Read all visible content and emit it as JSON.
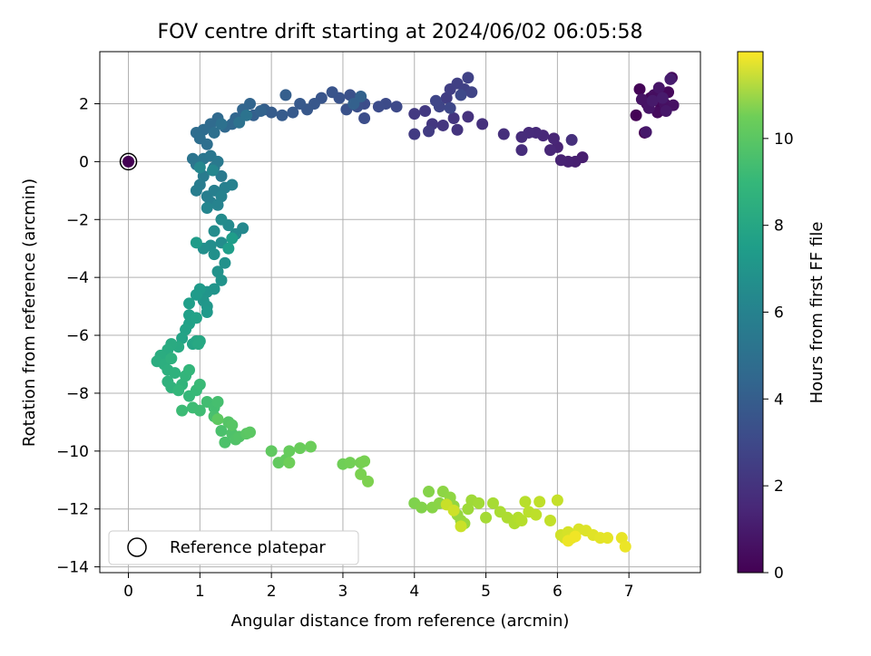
{
  "chart_data": {
    "type": "scatter",
    "title": "FOV centre drift starting at 2024/06/02 06:05:58",
    "xlabel": "Angular distance from reference (arcmin)",
    "ylabel": "Rotation from reference (arcmin)",
    "xlim": [
      -0.4,
      8.0
    ],
    "ylim": [
      -14.2,
      3.8
    ],
    "xticks": [
      "0",
      "1",
      "2",
      "3",
      "4",
      "5",
      "6",
      "7"
    ],
    "yticks": [
      "2",
      "0",
      "−2",
      "−4",
      "−6",
      "−8",
      "−10",
      "−12",
      "−14"
    ],
    "grid": true,
    "legend": {
      "position": "lower-left",
      "entries": [
        "Reference platepar"
      ]
    },
    "colorbar": {
      "label": "Hours from first FF file",
      "range": [
        0,
        12
      ],
      "ticks": [
        "0",
        "2",
        "4",
        "6",
        "8",
        "10"
      ],
      "colormap": "viridis"
    },
    "reference_point": {
      "x": 0,
      "y": 0
    },
    "series": [
      {
        "points": [
          [
            7.22,
            1.0
          ],
          [
            7.1,
            1.6
          ],
          [
            7.15,
            2.5
          ],
          [
            7.3,
            2.2
          ],
          [
            7.45,
            1.9
          ],
          [
            7.55,
            2.4
          ],
          [
            7.6,
            2.9
          ],
          [
            7.4,
            1.7
          ],
          [
            7.25,
            2.0
          ],
          [
            7.35,
            2.3
          ],
          [
            7.5,
            2.0
          ],
          [
            7.62,
            1.95
          ],
          [
            7.18,
            2.15
          ],
          [
            7.28,
            1.85
          ],
          [
            7.42,
            2.55
          ],
          [
            7.52,
            1.75
          ],
          [
            7.24,
            1.02
          ],
          [
            7.33,
            2.1
          ],
          [
            7.47,
            2.2
          ],
          [
            7.58,
            2.85
          ],
          [
            6.35,
            0.15
          ],
          [
            6.25,
            0.0
          ],
          [
            6.15,
            0.0
          ],
          [
            6.05,
            0.05
          ],
          [
            6.0,
            0.5
          ],
          [
            5.95,
            0.8
          ],
          [
            5.9,
            0.4
          ],
          [
            5.8,
            0.9
          ],
          [
            5.7,
            1.0
          ],
          [
            5.6,
            1.0
          ],
          [
            5.5,
            0.85
          ],
          [
            5.5,
            0.4
          ],
          [
            5.25,
            0.95
          ],
          [
            6.2,
            0.75
          ],
          [
            4.95,
            1.3
          ],
          [
            4.75,
            1.55
          ],
          [
            4.6,
            1.1
          ],
          [
            4.55,
            1.5
          ],
          [
            4.4,
            1.25
          ],
          [
            4.25,
            1.3
          ],
          [
            4.15,
            1.75
          ],
          [
            4.0,
            1.65
          ],
          [
            4.0,
            0.95
          ],
          [
            4.2,
            1.05
          ],
          [
            4.45,
            2.2
          ],
          [
            4.5,
            2.5
          ],
          [
            4.6,
            2.7
          ],
          [
            4.7,
            2.5
          ],
          [
            4.75,
            2.9
          ],
          [
            4.8,
            2.4
          ],
          [
            4.35,
            1.9
          ],
          [
            4.3,
            2.1
          ],
          [
            4.5,
            1.85
          ],
          [
            4.65,
            2.3
          ],
          [
            3.75,
            1.9
          ],
          [
            3.6,
            2.0
          ],
          [
            3.5,
            1.9
          ],
          [
            3.3,
            2.0
          ],
          [
            3.3,
            1.5
          ],
          [
            3.2,
            1.9
          ],
          [
            3.1,
            2.3
          ],
          [
            3.05,
            1.8
          ],
          [
            2.95,
            2.2
          ],
          [
            2.85,
            2.4
          ],
          [
            2.7,
            2.2
          ],
          [
            2.6,
            2.0
          ],
          [
            2.5,
            1.8
          ],
          [
            2.4,
            2.0
          ],
          [
            2.3,
            1.7
          ],
          [
            2.15,
            1.6
          ],
          [
            2.0,
            1.7
          ],
          [
            1.9,
            1.8
          ],
          [
            2.2,
            2.3
          ],
          [
            1.75,
            1.6
          ],
          [
            3.15,
            2.0
          ],
          [
            3.25,
            2.25
          ],
          [
            1.85,
            1.75
          ],
          [
            1.7,
            2.0
          ],
          [
            1.6,
            1.8
          ],
          [
            1.5,
            1.5
          ],
          [
            1.45,
            1.3
          ],
          [
            1.35,
            1.2
          ],
          [
            1.25,
            1.5
          ],
          [
            1.15,
            1.3
          ],
          [
            1.05,
            1.1
          ],
          [
            0.95,
            1.0
          ],
          [
            1.0,
            0.8
          ],
          [
            1.1,
            0.6
          ],
          [
            1.2,
            1.0
          ],
          [
            1.3,
            1.3
          ],
          [
            1.55,
            1.35
          ],
          [
            1.65,
            1.6
          ],
          [
            0.9,
            0.1
          ],
          [
            0.95,
            -0.1
          ],
          [
            1.05,
            0.1
          ],
          [
            1.15,
            0.2
          ],
          [
            1.2,
            -0.2
          ],
          [
            1.25,
            0.0
          ],
          [
            1.3,
            -0.5
          ],
          [
            1.05,
            -0.5
          ],
          [
            1.0,
            -0.8
          ],
          [
            0.95,
            -1.0
          ],
          [
            1.1,
            -1.2
          ],
          [
            1.2,
            -1.0
          ],
          [
            1.15,
            -1.4
          ],
          [
            1.35,
            -0.9
          ],
          [
            1.45,
            -0.8
          ],
          [
            1.3,
            -1.2
          ],
          [
            1.25,
            -1.5
          ],
          [
            1.1,
            -1.6
          ],
          [
            1.18,
            -0.3
          ],
          [
            1.0,
            -0.2
          ],
          [
            1.6,
            -2.3
          ],
          [
            1.5,
            -2.5
          ],
          [
            1.4,
            -2.2
          ],
          [
            1.3,
            -2.0
          ],
          [
            1.2,
            -2.4
          ],
          [
            1.3,
            -2.8
          ],
          [
            1.15,
            -2.9
          ],
          [
            1.05,
            -3.0
          ],
          [
            1.2,
            -3.2
          ],
          [
            1.35,
            -3.5
          ],
          [
            1.25,
            -3.8
          ],
          [
            1.3,
            -4.1
          ],
          [
            1.2,
            -4.4
          ],
          [
            1.1,
            -4.5
          ],
          [
            1.05,
            -4.8
          ],
          [
            1.1,
            -5.0
          ],
          [
            1.1,
            -5.2
          ],
          [
            1.0,
            -4.4
          ],
          [
            0.95,
            -4.6
          ],
          [
            0.95,
            -2.8
          ],
          [
            1.45,
            -2.65
          ],
          [
            1.4,
            -3.0
          ],
          [
            0.85,
            -4.9
          ],
          [
            0.85,
            -5.3
          ],
          [
            0.85,
            -5.6
          ],
          [
            0.95,
            -5.4
          ],
          [
            0.8,
            -5.8
          ],
          [
            0.75,
            -6.1
          ],
          [
            0.9,
            -6.3
          ],
          [
            0.95,
            -6.2
          ],
          [
            0.95,
            -6.25
          ],
          [
            1.0,
            -6.2
          ],
          [
            0.98,
            -6.3
          ],
          [
            0.7,
            -6.4
          ],
          [
            0.6,
            -6.3
          ],
          [
            0.55,
            -6.5
          ],
          [
            0.45,
            -6.7
          ],
          [
            0.4,
            -6.9
          ],
          [
            0.5,
            -7.0
          ],
          [
            0.55,
            -7.2
          ],
          [
            0.6,
            -6.8
          ],
          [
            0.65,
            -7.3
          ],
          [
            0.55,
            -7.6
          ],
          [
            0.6,
            -7.8
          ],
          [
            0.75,
            -7.7
          ],
          [
            0.8,
            -7.4
          ],
          [
            0.85,
            -7.2
          ],
          [
            0.7,
            -7.9
          ],
          [
            0.85,
            -8.1
          ],
          [
            0.95,
            -7.9
          ],
          [
            1.0,
            -7.7
          ],
          [
            0.75,
            -8.6
          ],
          [
            0.9,
            -8.5
          ],
          [
            1.0,
            -8.6
          ],
          [
            1.1,
            -8.3
          ],
          [
            1.2,
            -8.5
          ],
          [
            1.25,
            -8.3
          ],
          [
            1.2,
            -8.8
          ],
          [
            1.3,
            -9.3
          ],
          [
            1.35,
            -9.7
          ],
          [
            1.45,
            -9.4
          ],
          [
            1.5,
            -9.6
          ],
          [
            1.55,
            -9.5
          ],
          [
            1.4,
            -9.0
          ],
          [
            1.45,
            -9.1
          ],
          [
            1.65,
            -9.4
          ],
          [
            1.7,
            -9.35
          ],
          [
            1.25,
            -8.9
          ],
          [
            2.0,
            -10.0
          ],
          [
            2.1,
            -10.4
          ],
          [
            2.2,
            -10.3
          ],
          [
            2.25,
            -10.0
          ],
          [
            2.4,
            -9.9
          ],
          [
            2.55,
            -9.85
          ],
          [
            2.25,
            -10.4
          ],
          [
            3.0,
            -10.45
          ],
          [
            3.1,
            -10.4
          ],
          [
            3.25,
            -10.4
          ],
          [
            3.3,
            -10.35
          ],
          [
            3.25,
            -10.8
          ],
          [
            3.35,
            -11.05
          ],
          [
            4.0,
            -11.8
          ],
          [
            4.1,
            -11.95
          ],
          [
            4.2,
            -11.4
          ],
          [
            4.25,
            -11.95
          ],
          [
            4.35,
            -11.8
          ],
          [
            4.4,
            -11.4
          ],
          [
            4.5,
            -11.6
          ],
          [
            4.55,
            -11.9
          ],
          [
            4.6,
            -12.2
          ],
          [
            4.65,
            -12.4
          ],
          [
            4.7,
            -12.5
          ],
          [
            4.75,
            -12.0
          ],
          [
            4.8,
            -11.7
          ],
          [
            4.9,
            -11.8
          ],
          [
            5.0,
            -12.3
          ],
          [
            5.1,
            -11.8
          ],
          [
            5.2,
            -12.1
          ],
          [
            5.3,
            -12.3
          ],
          [
            5.4,
            -12.5
          ],
          [
            5.45,
            -12.3
          ],
          [
            5.5,
            -12.4
          ],
          [
            5.55,
            -11.75
          ],
          [
            5.6,
            -12.1
          ],
          [
            5.7,
            -12.2
          ],
          [
            5.75,
            -11.75
          ],
          [
            5.9,
            -12.4
          ],
          [
            6.0,
            -11.7
          ],
          [
            4.45,
            -11.85
          ],
          [
            4.65,
            -12.6
          ],
          [
            4.55,
            -12.05
          ],
          [
            6.05,
            -12.9
          ],
          [
            6.1,
            -13.0
          ],
          [
            6.15,
            -12.8
          ],
          [
            6.2,
            -13.0
          ],
          [
            6.3,
            -12.7
          ],
          [
            6.4,
            -12.75
          ],
          [
            6.5,
            -12.9
          ],
          [
            6.6,
            -13.0
          ],
          [
            6.7,
            -13.0
          ],
          [
            6.9,
            -13.0
          ],
          [
            6.95,
            -13.3
          ],
          [
            6.15,
            -13.1
          ],
          [
            6.25,
            -12.95
          ]
        ]
      }
    ]
  }
}
